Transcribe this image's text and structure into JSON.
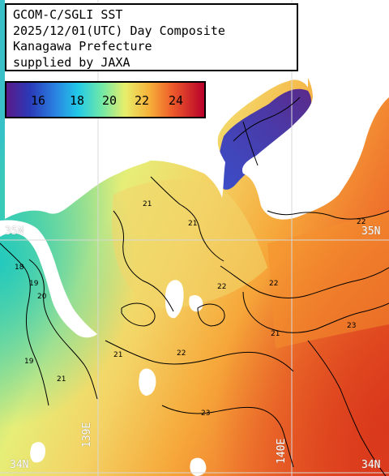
{
  "title": {
    "line1": "GCOM-C/SGLI SST",
    "line2": "2025/12/01(UTC) Day Composite",
    "line3": "Kanagawa Prefecture",
    "line4": "supplied by JAXA"
  },
  "colorbar": {
    "labels": [
      "16",
      "18",
      "20",
      "22",
      "24"
    ],
    "colors": [
      "#5a1a8a",
      "#2a3ab8",
      "#2a7ee0",
      "#22c8e8",
      "#6ee8a8",
      "#e8ee6a",
      "#f6b23a",
      "#ee5a2a",
      "#b8002a"
    ]
  },
  "grid_labels": {
    "lat_35_left": "35N",
    "lat_35_right": "35N",
    "lat_34_left": "34N",
    "lat_34_right": "34N",
    "lon_139": "139E",
    "lon_140": "140E"
  },
  "isotherm_labels": [
    "18",
    "19",
    "20",
    "21",
    "22",
    "23"
  ],
  "colors": {
    "land": "#ffffff",
    "grid": "#d8d8d8",
    "contour": "#000000"
  }
}
